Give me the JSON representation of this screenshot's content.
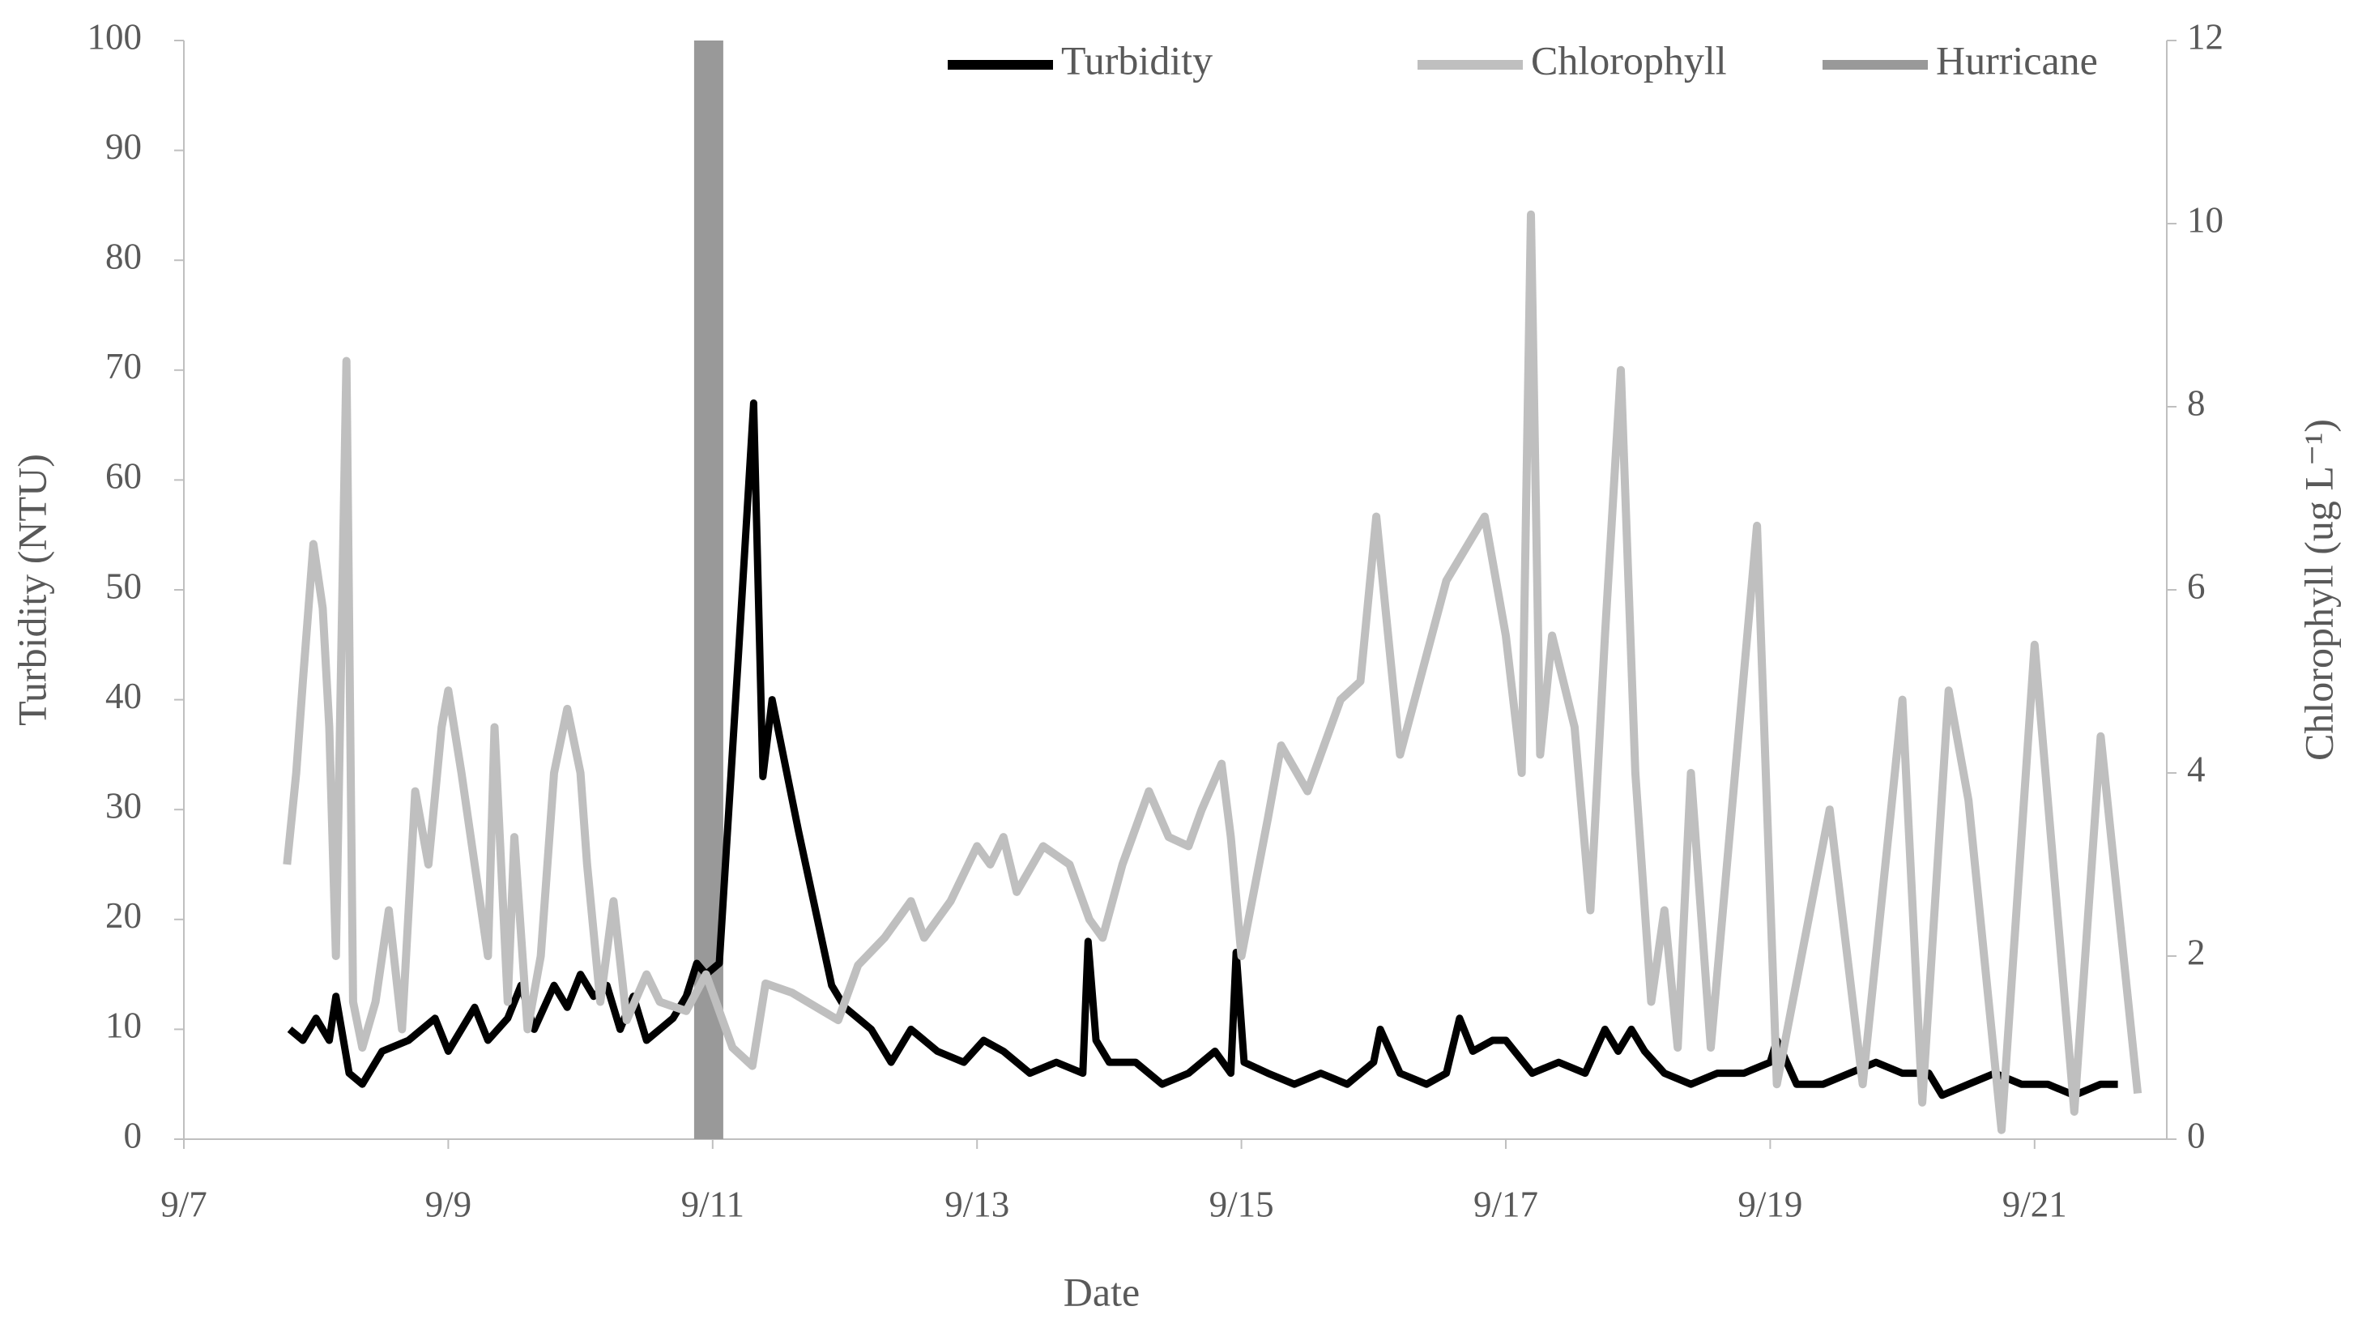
{
  "chart_data": {
    "type": "line",
    "xlabel": "Date",
    "ylabel": "Turbidity (NTU)",
    "y2label": "Chlorophyll (ug L⁻¹)",
    "xlim": [
      7,
      22
    ],
    "xticks": [
      {
        "value": 7,
        "label": "9/7"
      },
      {
        "value": 9,
        "label": "9/9"
      },
      {
        "value": 11,
        "label": "9/11"
      },
      {
        "value": 13,
        "label": "9/13"
      },
      {
        "value": 15,
        "label": "9/15"
      },
      {
        "value": 17,
        "label": "9/17"
      },
      {
        "value": 19,
        "label": "9/19"
      },
      {
        "value": 21,
        "label": "9/21"
      }
    ],
    "ylim": [
      0,
      100
    ],
    "yticks": [
      0,
      10,
      20,
      30,
      40,
      50,
      60,
      70,
      80,
      90,
      100
    ],
    "y2lim": [
      0,
      12
    ],
    "y2ticks": [
      0,
      2,
      4,
      6,
      8,
      10,
      12
    ],
    "legend": "top-right",
    "series": [
      {
        "name": "Turbidity",
        "color": "#000000",
        "kind": "line",
        "x": [
          7.8,
          7.9,
          8.0,
          8.1,
          8.15,
          8.25,
          8.35,
          8.5,
          8.7,
          8.9,
          9.0,
          9.1,
          9.2,
          9.3,
          9.45,
          9.55,
          9.65,
          9.8,
          9.9,
          10.0,
          10.1,
          10.2,
          10.3,
          10.4,
          10.5,
          10.6,
          10.7,
          10.8,
          10.88,
          10.95,
          11.05,
          11.2,
          11.31,
          11.38,
          11.45,
          11.65,
          11.9,
          12.0,
          12.1,
          12.2,
          12.35,
          12.5,
          12.7,
          12.9,
          13.05,
          13.2,
          13.4,
          13.6,
          13.8,
          13.84,
          13.9,
          14.0,
          14.2,
          14.4,
          14.6,
          14.8,
          14.92,
          14.96,
          15.02,
          15.2,
          15.4,
          15.6,
          15.8,
          16.0,
          16.05,
          16.2,
          16.4,
          16.55,
          16.65,
          16.75,
          16.9,
          17.0,
          17.2,
          17.4,
          17.6,
          17.75,
          17.85,
          17.95,
          18.05,
          18.2,
          18.4,
          18.6,
          18.8,
          19.0,
          19.05,
          19.2,
          19.4,
          19.6,
          19.8,
          20.0,
          20.2,
          20.3,
          20.5,
          20.7,
          20.9,
          21.1,
          21.3,
          21.5,
          21.63
        ],
        "values": [
          10,
          9,
          11,
          9,
          13,
          6,
          5,
          8,
          9,
          11,
          8,
          10,
          12,
          9,
          11,
          14,
          10,
          14,
          12,
          15,
          13,
          14,
          10,
          13,
          9,
          10,
          11,
          13,
          16,
          15,
          16,
          45,
          67,
          33,
          40,
          28,
          14,
          12,
          11,
          10,
          7,
          10,
          8,
          7,
          9,
          8,
          6,
          7,
          6,
          18,
          9,
          7,
          7,
          5,
          6,
          8,
          6,
          17,
          7,
          6,
          5,
          6,
          5,
          7,
          10,
          6,
          5,
          6,
          11,
          8,
          9,
          9,
          6,
          7,
          6,
          10,
          8,
          10,
          8,
          6,
          5,
          6,
          6,
          7,
          9,
          5,
          5,
          6,
          7,
          6,
          6,
          4,
          5,
          6,
          5,
          5,
          4,
          5,
          5
        ]
      },
      {
        "name": "Chlorophyll",
        "color": "#bfbfbf",
        "kind": "line",
        "axis": "y2",
        "x": [
          7.78,
          7.85,
          7.9,
          7.98,
          8.05,
          8.1,
          8.15,
          8.23,
          8.28,
          8.35,
          8.45,
          8.55,
          8.65,
          8.75,
          8.85,
          8.95,
          9.0,
          9.1,
          9.2,
          9.3,
          9.35,
          9.45,
          9.5,
          9.6,
          9.7,
          9.8,
          9.9,
          10.0,
          10.05,
          10.15,
          10.25,
          10.35,
          10.5,
          10.6,
          10.8,
          10.95,
          11.15,
          11.3,
          11.4,
          11.6,
          11.95,
          12.1,
          12.3,
          12.5,
          12.6,
          12.8,
          13.0,
          13.1,
          13.2,
          13.3,
          13.5,
          13.7,
          13.85,
          13.95,
          14.1,
          14.3,
          14.45,
          14.6,
          14.7,
          14.85,
          14.92,
          15.0,
          15.2,
          15.3,
          15.5,
          15.75,
          15.9,
          16.02,
          16.2,
          16.55,
          16.84,
          17.0,
          17.12,
          17.19,
          17.26,
          17.35,
          17.52,
          17.64,
          17.75,
          17.87,
          17.98,
          18.1,
          18.2,
          18.3,
          18.4,
          18.55,
          18.9,
          19.05,
          19.45,
          19.7,
          20.0,
          20.15,
          20.35,
          20.5,
          20.75,
          21.0,
          21.3,
          21.5,
          21.78
        ],
        "values": [
          3.0,
          4.0,
          5.0,
          6.5,
          5.8,
          4.5,
          2.0,
          8.5,
          1.5,
          1.0,
          1.5,
          2.5,
          1.2,
          3.8,
          3.0,
          4.5,
          4.9,
          4.0,
          3.0,
          2.0,
          4.5,
          1.5,
          3.3,
          1.2,
          2.0,
          4.0,
          4.7,
          4.0,
          3.0,
          1.5,
          2.6,
          1.3,
          1.8,
          1.5,
          1.4,
          1.8,
          1.0,
          0.8,
          1.7,
          1.6,
          1.3,
          1.9,
          2.2,
          2.6,
          2.2,
          2.6,
          3.2,
          3.0,
          3.3,
          2.7,
          3.2,
          3.0,
          2.4,
          2.2,
          3.0,
          3.8,
          3.3,
          3.2,
          3.6,
          4.1,
          3.3,
          2.0,
          3.5,
          4.3,
          3.8,
          4.8,
          5.0,
          6.8,
          4.2,
          6.1,
          6.8,
          5.5,
          4.0,
          10.1,
          4.2,
          5.5,
          4.5,
          2.5,
          5.5,
          8.4,
          4.0,
          1.5,
          2.5,
          1.0,
          4.0,
          1.0,
          6.7,
          0.6,
          3.6,
          0.6,
          4.8,
          0.4,
          4.9,
          3.7,
          0.1,
          5.4,
          0.3,
          4.4,
          0.5
        ]
      },
      {
        "name": "Hurricane",
        "color": "#999999",
        "kind": "band",
        "x": [
          10.97
        ],
        "values": [
          100
        ]
      }
    ]
  }
}
